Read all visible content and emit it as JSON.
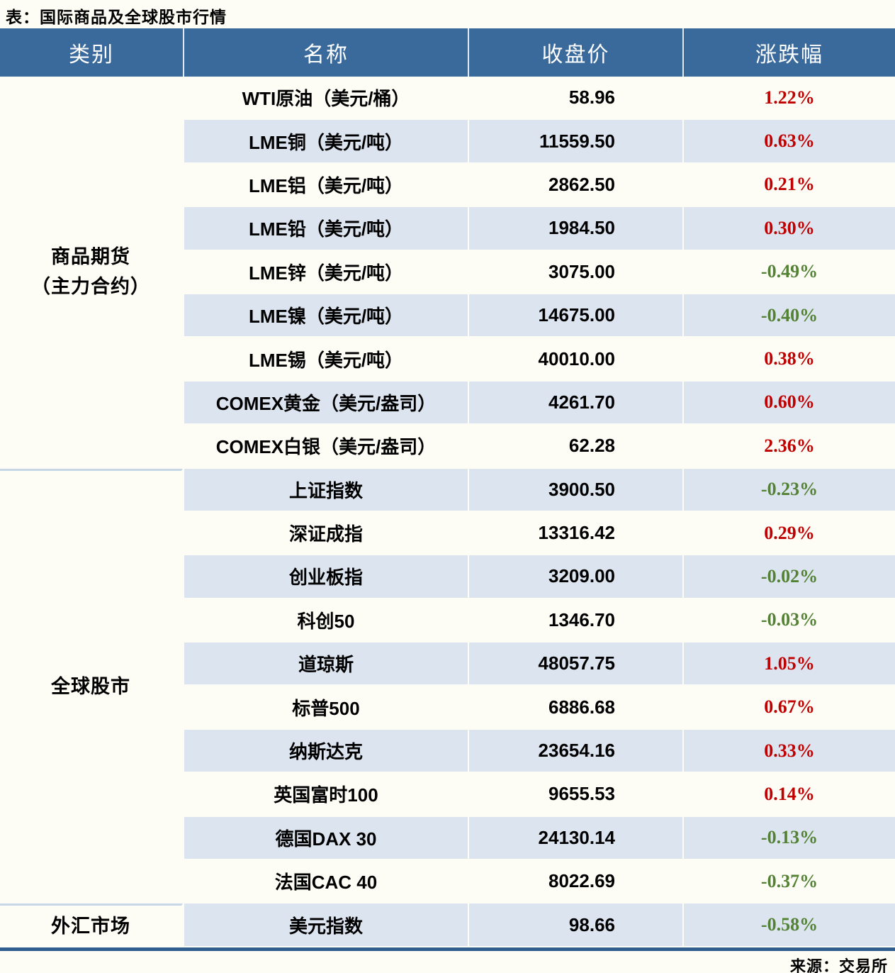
{
  "title": "表：国际商品及全球股市行情",
  "source": "来源：交易所",
  "colors": {
    "page_bg": "#FDFDF6",
    "header_bg": "#3A6A9C",
    "row_alt": "#DCE4EF",
    "divider": "#C7D7E8",
    "bottom_border": "#2F5E8F",
    "up": "#C00000",
    "down": "#548235"
  },
  "table": {
    "columns": [
      "类别",
      "名称",
      "收盘价",
      "涨跌幅"
    ],
    "sections": [
      {
        "category_lines": [
          "商品期货",
          "（主力合约）"
        ],
        "rows": [
          {
            "name": "WTI原油（美元/桶）",
            "close": "58.96",
            "change": "1.22%",
            "direction": "up"
          },
          {
            "name": "LME铜（美元/吨）",
            "close": "11559.50",
            "change": "0.63%",
            "direction": "up"
          },
          {
            "name": "LME铝（美元/吨）",
            "close": "2862.50",
            "change": "0.21%",
            "direction": "up"
          },
          {
            "name": "LME铅（美元/吨）",
            "close": "1984.50",
            "change": "0.30%",
            "direction": "up"
          },
          {
            "name": "LME锌（美元/吨）",
            "close": "3075.00",
            "change": "-0.49%",
            "direction": "down"
          },
          {
            "name": "LME镍（美元/吨）",
            "close": "14675.00",
            "change": "-0.40%",
            "direction": "down"
          },
          {
            "name": "LME锡（美元/吨）",
            "close": "40010.00",
            "change": "0.38%",
            "direction": "up"
          },
          {
            "name": "COMEX黄金（美元/盎司）",
            "close": "4261.70",
            "change": "0.60%",
            "direction": "up"
          },
          {
            "name": "COMEX白银（美元/盎司）",
            "close": "62.28",
            "change": "2.36%",
            "direction": "up"
          }
        ]
      },
      {
        "category_lines": [
          "全球股市"
        ],
        "rows": [
          {
            "name": "上证指数",
            "close": "3900.50",
            "change": "-0.23%",
            "direction": "down"
          },
          {
            "name": "深证成指",
            "close": "13316.42",
            "change": "0.29%",
            "direction": "up"
          },
          {
            "name": "创业板指",
            "close": "3209.00",
            "change": "-0.02%",
            "direction": "down"
          },
          {
            "name": "科创50",
            "close": "1346.70",
            "change": "-0.03%",
            "direction": "down"
          },
          {
            "name": "道琼斯",
            "close": "48057.75",
            "change": "1.05%",
            "direction": "up"
          },
          {
            "name": "标普500",
            "close": "6886.68",
            "change": "0.67%",
            "direction": "up"
          },
          {
            "name": "纳斯达克",
            "close": "23654.16",
            "change": "0.33%",
            "direction": "up"
          },
          {
            "name": "英国富时100",
            "close": "9655.53",
            "change": "0.14%",
            "direction": "up"
          },
          {
            "name": "德国DAX 30",
            "close": "24130.14",
            "change": "-0.13%",
            "direction": "down"
          },
          {
            "name": "法国CAC 40",
            "close": "8022.69",
            "change": "-0.37%",
            "direction": "down"
          }
        ]
      },
      {
        "category_lines": [
          "外汇市场"
        ],
        "rows": [
          {
            "name": "美元指数",
            "close": "98.66",
            "change": "-0.58%",
            "direction": "down"
          }
        ]
      }
    ]
  },
  "chart_data": {
    "type": "table",
    "title": "表：国际商品及全球股市行情",
    "source": "来源：交易所",
    "columns": [
      "类别",
      "名称",
      "收盘价",
      "涨跌幅"
    ],
    "rows": [
      [
        "商品期货（主力合约）",
        "WTI原油（美元/桶）",
        58.96,
        "1.22%"
      ],
      [
        "商品期货（主力合约）",
        "LME铜（美元/吨）",
        11559.5,
        "0.63%"
      ],
      [
        "商品期货（主力合约）",
        "LME铝（美元/吨）",
        2862.5,
        "0.21%"
      ],
      [
        "商品期货（主力合约）",
        "LME铅（美元/吨）",
        1984.5,
        "0.30%"
      ],
      [
        "商品期货（主力合约）",
        "LME锌（美元/吨）",
        3075.0,
        "-0.49%"
      ],
      [
        "商品期货（主力合约）",
        "LME镍（美元/吨）",
        14675.0,
        "-0.40%"
      ],
      [
        "商品期货（主力合约）",
        "LME锡（美元/吨）",
        40010.0,
        "0.38%"
      ],
      [
        "商品期货（主力合约）",
        "COMEX黄金（美元/盎司）",
        4261.7,
        "0.60%"
      ],
      [
        "商品期货（主力合约）",
        "COMEX白银（美元/盎司）",
        62.28,
        "2.36%"
      ],
      [
        "全球股市",
        "上证指数",
        3900.5,
        "-0.23%"
      ],
      [
        "全球股市",
        "深证成指",
        13316.42,
        "0.29%"
      ],
      [
        "全球股市",
        "创业板指",
        3209.0,
        "-0.02%"
      ],
      [
        "全球股市",
        "科创50",
        1346.7,
        "-0.03%"
      ],
      [
        "全球股市",
        "道琼斯",
        48057.75,
        "1.05%"
      ],
      [
        "全球股市",
        "标普500",
        6886.68,
        "0.67%"
      ],
      [
        "全球股市",
        "纳斯达克",
        23654.16,
        "0.33%"
      ],
      [
        "全球股市",
        "英国富时100",
        9655.53,
        "0.14%"
      ],
      [
        "全球股市",
        "德国DAX 30",
        24130.14,
        "-0.13%"
      ],
      [
        "全球股市",
        "法国CAC 40",
        8022.69,
        "-0.37%"
      ],
      [
        "外汇市场",
        "美元指数",
        98.66,
        "-0.58%"
      ]
    ],
    "value_color_rule": {
      "up": "#C00000",
      "down": "#548235"
    }
  }
}
